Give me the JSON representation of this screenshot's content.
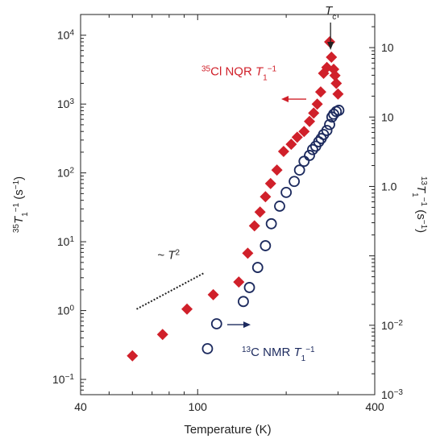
{
  "chart_data": {
    "type": "scatter",
    "xlabel": "Temperature (K)",
    "ylabel_left": {
      "prefix": "35",
      "main": "T",
      "sub": "1",
      "sup": "−1",
      "unit": " (s",
      "unit_sup": "−1",
      "close": ")"
    },
    "ylabel_right": {
      "prefix": "13",
      "main": "T",
      "sub": "1",
      "sup": "−1",
      "unit": " (s",
      "unit_sup": "−1",
      "close": ")"
    },
    "x_scale": "log",
    "y_scale": "log",
    "xlim": [
      40,
      400
    ],
    "ylim_left": [
      0.06,
      20000
    ],
    "ylim_right": [
      0.001,
      300
    ],
    "x_ticks": [
      {
        "value": 40,
        "label": "40"
      },
      {
        "value": 100,
        "label": "100"
      },
      {
        "value": 400,
        "label": "400"
      }
    ],
    "y_ticks_left": [
      {
        "value": 0.1,
        "mant": "10",
        "exp": "−1"
      },
      {
        "value": 1,
        "mant": "10",
        "exp": "0"
      },
      {
        "value": 10,
        "mant": "10",
        "exp": "1"
      },
      {
        "value": 100,
        "mant": "10",
        "exp": "2"
      },
      {
        "value": 1000,
        "mant": "10",
        "exp": "3"
      },
      {
        "value": 10000,
        "mant": "10",
        "exp": "4"
      }
    ],
    "y_ticks_right": [
      {
        "value": 0.001,
        "mant": "10",
        "exp": "−3"
      },
      {
        "value": 0.01,
        "mant": "10",
        "exp": "−2"
      },
      {
        "value": 0.1,
        "label": "10",
        "mant": "",
        "exp": ""
      },
      {
        "value": 1,
        "label": "1.0"
      },
      {
        "value": 10,
        "label": "10"
      },
      {
        "value": 100,
        "label": "10"
      }
    ],
    "series": [
      {
        "name": "35Cl NQR T1−1",
        "axis": "left",
        "marker": "diamond",
        "color": "#d0202a",
        "x": [
          60,
          76,
          92,
          113,
          138,
          148,
          156,
          163,
          170,
          177,
          186,
          196,
          208,
          218,
          230,
          240,
          248,
          255,
          262,
          268,
          275,
          281,
          285,
          290,
          293,
          296,
          300
        ],
        "y": [
          0.22,
          0.45,
          1.05,
          1.7,
          2.6,
          6.8,
          17,
          27,
          45,
          70,
          110,
          205,
          260,
          330,
          400,
          560,
          740,
          1000,
          1500,
          2800,
          3400,
          8000,
          4800,
          3200,
          2600,
          2000,
          1400
        ]
      },
      {
        "name": "13C NMR T1−1",
        "axis": "right",
        "marker": "open-circle",
        "color": "#1c2a5e",
        "x": [
          108,
          116,
          143,
          150,
          160,
          170,
          178,
          190,
          200,
          213,
          222,
          230,
          240,
          246,
          252,
          258,
          263,
          268,
          275,
          281,
          286,
          290,
          296,
          302
        ],
        "y": [
          0.0046,
          0.0105,
          0.022,
          0.035,
          0.068,
          0.14,
          0.29,
          0.52,
          0.82,
          1.18,
          1.72,
          2.3,
          2.8,
          3.4,
          3.8,
          4.4,
          4.9,
          5.6,
          6.4,
          7.8,
          10,
          11,
          12,
          12.5
        ]
      }
    ],
    "annotations": {
      "tc": {
        "main": "T",
        "sub": "c"
      },
      "nqr_label": {
        "prefix": "35",
        "text": "Cl NQR ",
        "main": "T",
        "sub": "1",
        "sup": "−1"
      },
      "nmr_label": {
        "prefix": "13",
        "text": "C NMR ",
        "main": "T",
        "sub": "1",
        "sup": "−1"
      },
      "power_law": {
        "text": "~ ",
        "main": "T",
        "sup": "2"
      }
    },
    "colors": {
      "nqr": "#d0202a",
      "nmr": "#1c2a5e",
      "axis": "#222222"
    }
  }
}
